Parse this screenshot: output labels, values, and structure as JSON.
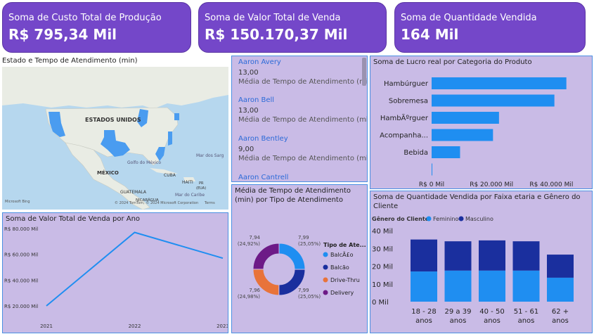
{
  "kpis": [
    {
      "label": "Soma de Custo Total de Produção",
      "value": "R$ 795,34 Mil"
    },
    {
      "label": "Soma de Valor Total de Venda",
      "value": "R$ 150.170,37 Mil"
    },
    {
      "label": "Soma de Quantidade Vendida",
      "value": "164 Mil"
    }
  ],
  "map": {
    "title": "Estado e Tempo de Atendimento (min)",
    "labels": {
      "usa": "ESTADOS UNIDOS",
      "mexico": "MÉXICO",
      "gulf": "Golfo do México",
      "cuba": "CUBA",
      "haiti": "HAITI",
      "pr": "PR",
      "pr2": "(EUA)",
      "guatemala": "GUATEMALA",
      "nicaragua": "NICARÁGUA",
      "sargasso": "Mar dos Sarg",
      "caribe": "Mar do Caribe"
    },
    "brand": "Microsoft Bing",
    "copyright": "© 2024 TomTom, © 2024 Microsoft Corporation",
    "terms": "Terms"
  },
  "attendants": {
    "metric_label": "Média de Tempo de Atendimento (mi...",
    "items": [
      {
        "name": "Aaron Avery",
        "value": "13,00"
      },
      {
        "name": "Aaron Bell",
        "value": "13,00"
      },
      {
        "name": "Aaron Bentley",
        "value": "9,00"
      },
      {
        "name": "Aaron Cantrell",
        "value": ""
      }
    ]
  },
  "colors": {
    "kpi": "#7447c9",
    "panel": "#c9bbe6",
    "bar_blue": "#1f8ef1",
    "navy": "#1a2f9e",
    "orange": "#e8733a",
    "purple": "#6d1a87"
  },
  "chart_data": [
    {
      "type": "bar",
      "orientation": "horizontal",
      "title": "Soma de Lucro real por Categoria do Produto",
      "categories": [
        "Hambúrguer",
        "Sobremesa",
        "HambÃºrguer",
        "Acompanha...",
        "Bebida",
        ""
      ],
      "values": [
        45000,
        41000,
        22500,
        20500,
        9500,
        200
      ],
      "xlim": [
        0,
        50000
      ],
      "xticks": [
        0,
        20000,
        40000
      ],
      "xtick_labels": [
        "R$ 0 Mil",
        "R$ 20.000 Mil",
        "R$ 40.000 Mil"
      ]
    },
    {
      "type": "line",
      "title": "Soma de Valor Total de Venda por Ano",
      "x": [
        "2021",
        "2022",
        "2023"
      ],
      "values": [
        20000,
        77000,
        57000
      ],
      "ylim": [
        20000,
        80000
      ],
      "yticks": [
        20000,
        40000,
        60000,
        80000
      ],
      "ytick_labels": [
        "R$ 20.000 Mil",
        "R$ 40.000 Mil",
        "R$ 60.000 Mil",
        "R$ 80.000 Mil"
      ]
    },
    {
      "type": "pie",
      "donut": true,
      "title": "Média de Tempo de Atendimento (min) por Tipo de Atendimento",
      "legend_title": "Tipo de Ate...",
      "slices": [
        {
          "label": "BalcÃ£o",
          "value": 7.99,
          "text": "7,99",
          "pct": "(25,05%)"
        },
        {
          "label": "Balcão",
          "value": 7.99,
          "text": "7,99",
          "pct": "(25,05%)"
        },
        {
          "label": "Drive-Thru",
          "value": 7.96,
          "text": "7,96",
          "pct": "(24,98%)"
        },
        {
          "label": "Delivery",
          "value": 7.94,
          "text": "7,94",
          "pct": "(24,92%)"
        }
      ]
    },
    {
      "type": "bar",
      "stacked": true,
      "title": "Soma de Quantidade Vendida por Faixa etaria e Gênero do Cliente",
      "legend_title": "Gênero do Cliente",
      "categories": [
        "18 - 28 anos",
        "29 a 39 anos",
        "40 - 50 anos",
        "51 - 61 anos",
        "62 + anos"
      ],
      "series": [
        {
          "name": "Feminino",
          "values": [
            17000,
            17500,
            17500,
            17500,
            13500
          ]
        },
        {
          "name": "Masculino",
          "values": [
            18000,
            16500,
            17000,
            16500,
            13000
          ]
        }
      ],
      "ylim": [
        0,
        40000
      ],
      "yticks": [
        0,
        10000,
        20000,
        30000,
        40000
      ],
      "ytick_labels": [
        "0 Mil",
        "10 Mil",
        "20 Mil",
        "30 Mil",
        "40 Mil"
      ]
    }
  ]
}
